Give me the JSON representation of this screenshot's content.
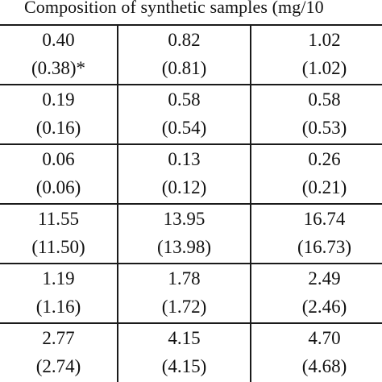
{
  "table": {
    "header": "Composition of synthetic samples  (mg/10",
    "rows": [
      [
        {
          "value": "0.40",
          "recovered": "(0.38)*"
        },
        {
          "value": "0.82",
          "recovered": "(0.81)"
        },
        {
          "value": "1.02",
          "recovered": "(1.02)"
        }
      ],
      [
        {
          "value": "0.19",
          "recovered": "(0.16)"
        },
        {
          "value": "0.58",
          "recovered": "(0.54)"
        },
        {
          "value": "0.58",
          "recovered": "(0.53)"
        }
      ],
      [
        {
          "value": "0.06",
          "recovered": "(0.06)"
        },
        {
          "value": "0.13",
          "recovered": "(0.12)"
        },
        {
          "value": "0.26",
          "recovered": "(0.21)"
        }
      ],
      [
        {
          "value": "11.55",
          "recovered": "(11.50)"
        },
        {
          "value": "13.95",
          "recovered": "(13.98)"
        },
        {
          "value": "16.74",
          "recovered": "(16.73)"
        }
      ],
      [
        {
          "value": "1.19",
          "recovered": "(1.16)"
        },
        {
          "value": "1.78",
          "recovered": "(1.72)"
        },
        {
          "value": "2.49",
          "recovered": "(2.46)"
        }
      ],
      [
        {
          "value": "2.77",
          "recovered": "(2.74)"
        },
        {
          "value": "4.15",
          "recovered": "(4.15)"
        },
        {
          "value": "4.70",
          "recovered": "(4.68)"
        }
      ]
    ]
  }
}
